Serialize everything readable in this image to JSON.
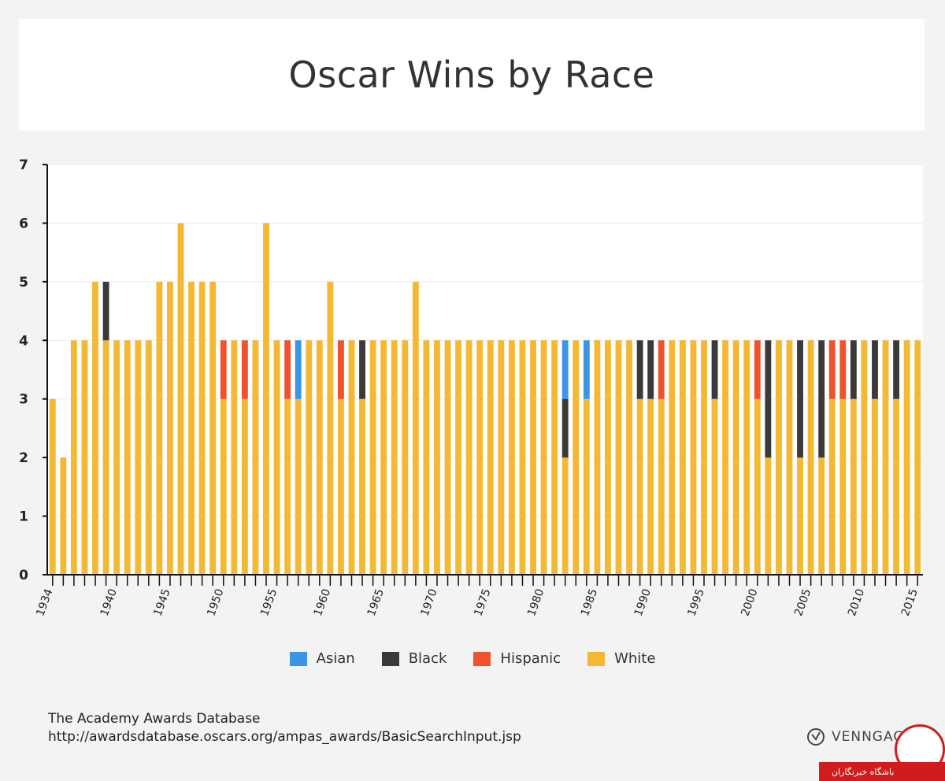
{
  "chart_data": {
    "type": "bar",
    "stacked": true,
    "title": "Oscar Wins by Race",
    "xlabel": "",
    "ylabel": "",
    "ylim": [
      0,
      7
    ],
    "yticks": [
      0,
      1,
      2,
      3,
      4,
      5,
      6,
      7
    ],
    "xtick_labels": [
      "1934",
      "1940",
      "1945",
      "1950",
      "1955",
      "1960",
      "1965",
      "1970",
      "1975",
      "1980",
      "1985",
      "1990",
      "1995",
      "2000",
      "2005",
      "2010",
      "2015"
    ],
    "legend_position": "bottom",
    "series_order": [
      "White",
      "Black",
      "Asian",
      "Hispanic"
    ],
    "colors": {
      "Asian": "#3a95e4",
      "Black": "#3a3a3a",
      "Hispanic": "#f0522d",
      "White": "#f4b934"
    },
    "categories": [
      1934,
      1935,
      1936,
      1937,
      1938,
      1939,
      1940,
      1941,
      1942,
      1943,
      1944,
      1945,
      1946,
      1947,
      1948,
      1949,
      1950,
      1951,
      1952,
      1953,
      1954,
      1955,
      1956,
      1957,
      1958,
      1959,
      1960,
      1961,
      1962,
      1963,
      1964,
      1965,
      1966,
      1967,
      1968,
      1969,
      1970,
      1971,
      1972,
      1973,
      1974,
      1975,
      1976,
      1977,
      1978,
      1979,
      1980,
      1981,
      1982,
      1983,
      1984,
      1985,
      1986,
      1987,
      1988,
      1989,
      1990,
      1991,
      1992,
      1993,
      1994,
      1995,
      1996,
      1997,
      1998,
      1999,
      2000,
      2001,
      2002,
      2003,
      2004,
      2005,
      2006,
      2007,
      2008,
      2009,
      2010,
      2011,
      2012,
      2013,
      2014,
      2015
    ],
    "series": [
      {
        "name": "White",
        "values": [
          3,
          2,
          4,
          4,
          5,
          4,
          4,
          4,
          4,
          4,
          5,
          5,
          6,
          5,
          5,
          5,
          3,
          4,
          3,
          4,
          6,
          4,
          3,
          3,
          4,
          4,
          5,
          3,
          4,
          3,
          4,
          4,
          4,
          4,
          5,
          4,
          4,
          4,
          4,
          4,
          4,
          4,
          4,
          4,
          4,
          4,
          4,
          4,
          2,
          4,
          3,
          4,
          4,
          4,
          4,
          3,
          3,
          3,
          4,
          4,
          4,
          4,
          3,
          4,
          4,
          4,
          3,
          2,
          4,
          4,
          2,
          4,
          2,
          3,
          3,
          3,
          4,
          3,
          4,
          3,
          4,
          4
        ]
      },
      {
        "name": "Black",
        "values": [
          0,
          0,
          0,
          0,
          0,
          1,
          0,
          0,
          0,
          0,
          0,
          0,
          0,
          0,
          0,
          0,
          0,
          0,
          0,
          0,
          0,
          0,
          0,
          0,
          0,
          0,
          0,
          0,
          0,
          1,
          0,
          0,
          0,
          0,
          0,
          0,
          0,
          0,
          0,
          0,
          0,
          0,
          0,
          0,
          0,
          0,
          0,
          0,
          1,
          0,
          0,
          0,
          0,
          0,
          0,
          1,
          1,
          0,
          0,
          0,
          0,
          0,
          1,
          0,
          0,
          0,
          0,
          2,
          0,
          0,
          2,
          0,
          2,
          0,
          0,
          1,
          0,
          1,
          0,
          1,
          0,
          0
        ]
      },
      {
        "name": "Asian",
        "values": [
          0,
          0,
          0,
          0,
          0,
          0,
          0,
          0,
          0,
          0,
          0,
          0,
          0,
          0,
          0,
          0,
          0,
          0,
          0,
          0,
          0,
          0,
          0,
          1,
          0,
          0,
          0,
          0,
          0,
          0,
          0,
          0,
          0,
          0,
          0,
          0,
          0,
          0,
          0,
          0,
          0,
          0,
          0,
          0,
          0,
          0,
          0,
          0,
          1,
          0,
          1,
          0,
          0,
          0,
          0,
          0,
          0,
          0,
          0,
          0,
          0,
          0,
          0,
          0,
          0,
          0,
          0,
          0,
          0,
          0,
          0,
          0,
          0,
          0,
          0,
          0,
          0,
          0,
          0,
          0,
          0,
          0
        ]
      },
      {
        "name": "Hispanic",
        "values": [
          0,
          0,
          0,
          0,
          0,
          0,
          0,
          0,
          0,
          0,
          0,
          0,
          0,
          0,
          0,
          0,
          1,
          0,
          1,
          0,
          0,
          0,
          1,
          0,
          0,
          0,
          0,
          1,
          0,
          0,
          0,
          0,
          0,
          0,
          0,
          0,
          0,
          0,
          0,
          0,
          0,
          0,
          0,
          0,
          0,
          0,
          0,
          0,
          0,
          0,
          0,
          0,
          0,
          0,
          0,
          0,
          0,
          1,
          0,
          0,
          0,
          0,
          0,
          0,
          0,
          0,
          1,
          0,
          0,
          0,
          0,
          0,
          0,
          1,
          1,
          0,
          0,
          0,
          0,
          0,
          0,
          0
        ]
      }
    ],
    "legend": [
      "Asian",
      "Black",
      "Hispanic",
      "White"
    ]
  },
  "source": {
    "line1": "The Academy Awards Database",
    "line2": "http://awardsdatabase.oscars.org/ampas_awards/BasicSearchInput.jsp"
  },
  "brand": {
    "name": "VENNGAGE"
  },
  "watermark": {
    "text": "باشگاه خبرنگاران"
  }
}
